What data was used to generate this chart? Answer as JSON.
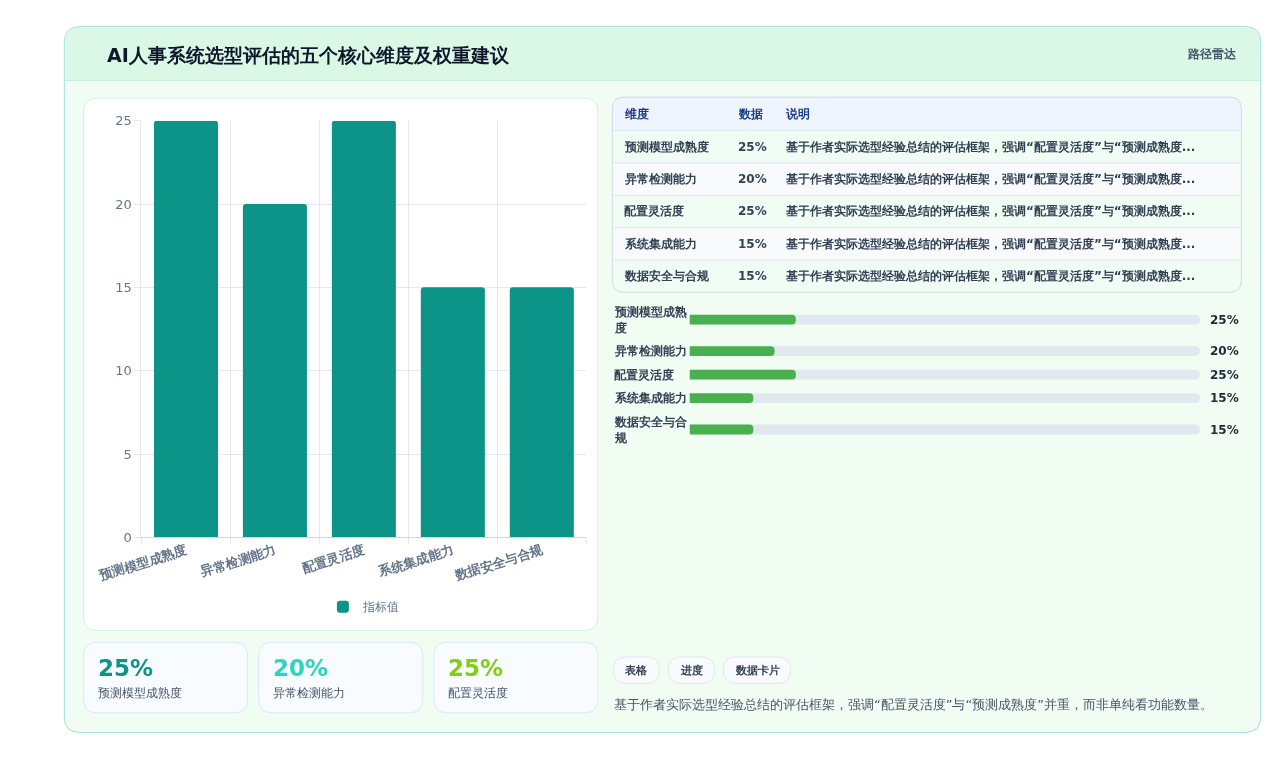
{
  "chart_data": [
    {
      "type": "other",
      "title": "AI人事系统选型评估的五个核心维度及权重建议",
      "annotations": [
        "路径雷达"
      ]
    },
    {
      "type": "bar",
      "categories": [
        "预测模型成熟度",
        "异常检测能力",
        "配置灵活度",
        "系统集成能力",
        "数据安全与合规"
      ],
      "series": [
        {
          "name": "指标值",
          "color": "#0d9488",
          "values": [
            25,
            20,
            25,
            15,
            15
          ]
        }
      ],
      "ylim": [
        0,
        25
      ],
      "yticks": [
        0,
        5,
        10,
        15,
        20,
        25
      ],
      "grid": true,
      "legend": "bottom"
    },
    {
      "type": "other",
      "categories": [
        "预测模型成熟度",
        "异常检测能力",
        "配置灵活度",
        "系统集成能力",
        "数据安全与合规"
      ],
      "value_labels": [
        "25%",
        "20%",
        "25%",
        "15%",
        "15%"
      ],
      "annotations": [
        "维度",
        "数据",
        "说明",
        "基于作者实际选型经验总结的评估框架，强调“配置灵活度”与“预测成熟度...",
        "基于作者实际选型经验总结的评估框架，强调“配置灵活度”与“预测成熟度...",
        "基于作者实际选型经验总结的评估框架，强调“配置灵活度”与“预测成熟度...",
        "基于作者实际选型经验总结的评估框架，强调“配置灵活度”与“预测成熟度...",
        "基于作者实际选型经验总结的评估框架，强调“配置灵活度”与“预测成熟度..."
      ]
    },
    {
      "type": "bar",
      "orientation": "horizontal",
      "categories": [
        "预测模型成熟度",
        "异常检测能力",
        "配置灵活度",
        "系统集成能力",
        "数据安全与合规"
      ],
      "values": [
        25,
        20,
        25,
        15,
        15
      ],
      "color": "#48b04f",
      "value_labels": [
        "25%",
        "20%",
        "25%",
        "15%",
        "15%"
      ],
      "xlim": [
        0,
        120
      ],
      "tick_labels": "y"
    },
    {
      "type": "other",
      "categories": [
        "预测模型成熟度",
        "异常检测能力",
        "配置灵活度"
      ],
      "value_labels": [
        "25%",
        "20%",
        "25%"
      ],
      "colors": [
        "#0d9488",
        "#2dd4bf",
        "#84cc16"
      ]
    },
    {
      "type": "other",
      "annotations": [
        "表格",
        "进度",
        "数据卡片",
        "基于作者实际选型经验总结的评估框架，强调“配置灵活度”与“预测成熟度”并重，而非单纯看功能数量。"
      ]
    }
  ]
}
